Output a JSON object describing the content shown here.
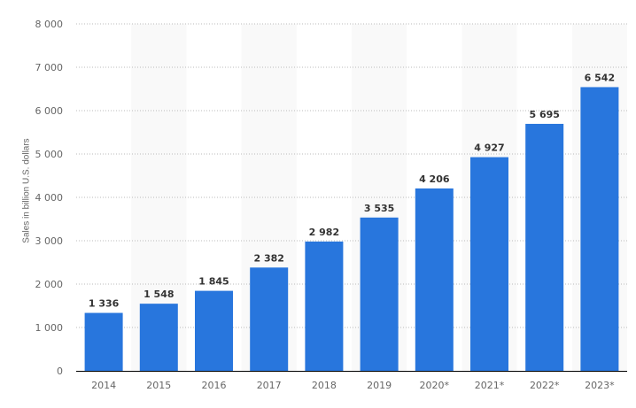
{
  "chart_data": {
    "type": "bar",
    "title": "",
    "xlabel": "",
    "ylabel": "Sales in billion U.S. dollars",
    "categories": [
      "2014",
      "2015",
      "2016",
      "2017",
      "2018",
      "2019",
      "2020*",
      "2021*",
      "2022*",
      "2023*"
    ],
    "values": [
      1336,
      1548,
      1845,
      2382,
      2982,
      3535,
      4206,
      4927,
      5695,
      6542
    ],
    "value_labels": [
      "1 336",
      "1 548",
      "1 845",
      "2 382",
      "2 982",
      "3 535",
      "4 206",
      "4 927",
      "5 695",
      "6 542"
    ],
    "ylim": [
      0,
      8000
    ],
    "yticks": [
      0,
      1000,
      2000,
      3000,
      4000,
      5000,
      6000,
      7000,
      8000
    ],
    "ytick_labels": [
      "0",
      "1 000",
      "2 000",
      "3 000",
      "4 000",
      "5 000",
      "6 000",
      "7 000",
      "8 000"
    ],
    "grid": true,
    "legend": null,
    "colors": {
      "bar": "#2876dd",
      "band": "#f9f9f9",
      "grid": "#bbbbbb",
      "axis": "#000000",
      "tick_text": "#666666",
      "value_text": "#333333"
    }
  }
}
